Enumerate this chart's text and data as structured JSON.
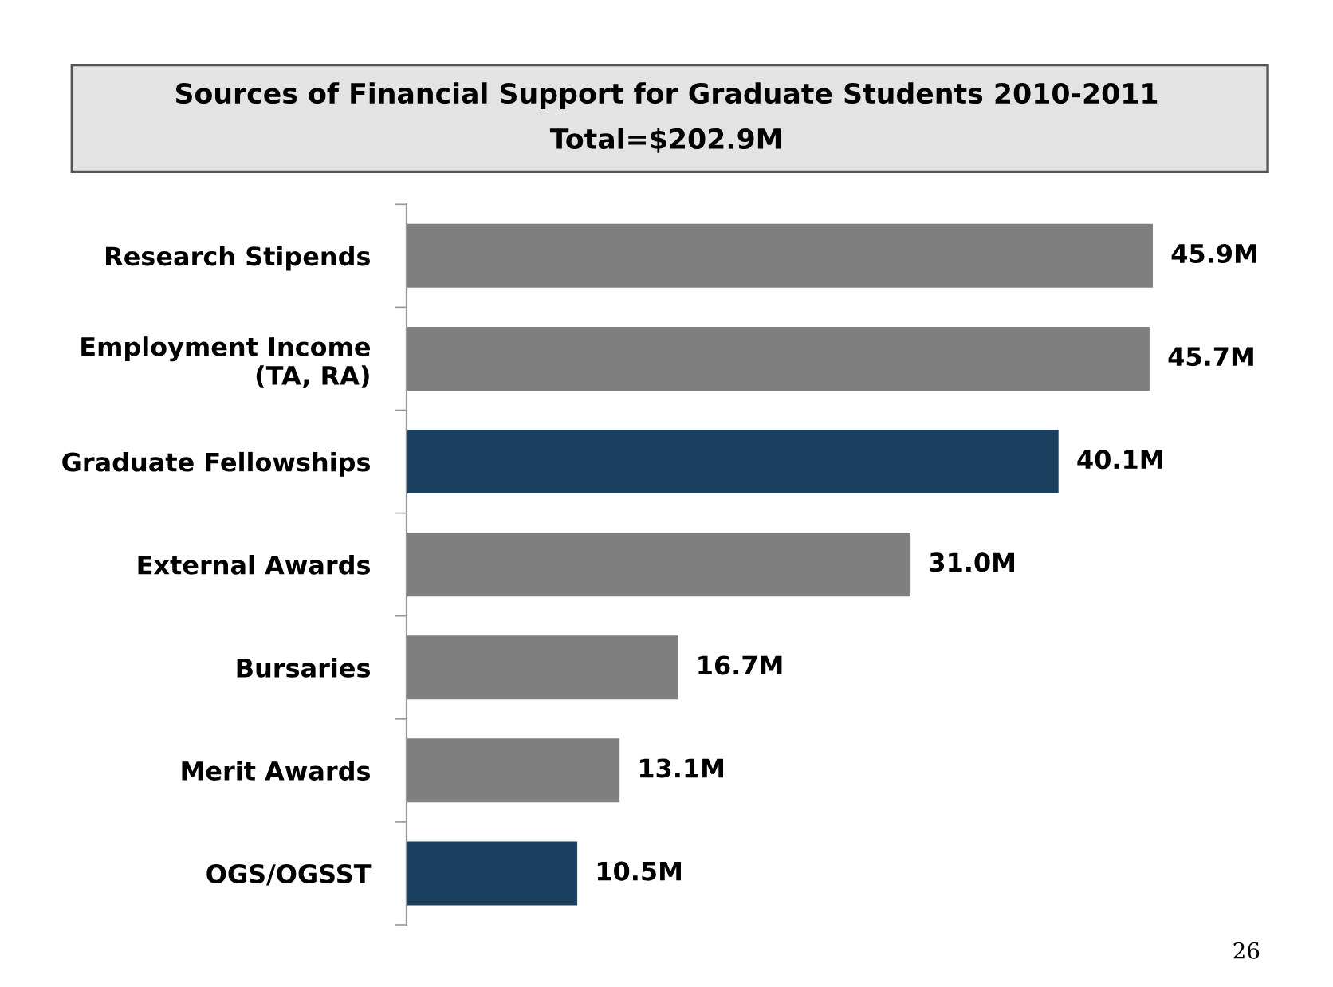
{
  "chart_data": {
    "type": "bar",
    "orientation": "horizontal",
    "title": "Sources of Financial Support for Graduate Students 2010-2011",
    "subtitle": "Total=$202.9M",
    "categories": [
      "Research Stipends",
      "Employment Income\n(TA, RA)",
      "Graduate Fellowships",
      "External Awards",
      "Bursaries",
      "Merit Awards",
      "OGS/OGSST"
    ],
    "values": [
      45.9,
      45.7,
      40.1,
      31.0,
      16.7,
      13.1,
      10.5
    ],
    "value_labels": [
      "45.9M",
      "45.7M",
      "40.1M",
      "31.0M",
      "16.7M",
      "13.1M",
      "10.5M"
    ],
    "colors": [
      "#7f7f7f",
      "#7f7f7f",
      "#1b3f5f",
      "#7f7f7f",
      "#7f7f7f",
      "#7f7f7f",
      "#1b3f5f"
    ],
    "legend": false,
    "annotations": [
      "26"
    ]
  }
}
